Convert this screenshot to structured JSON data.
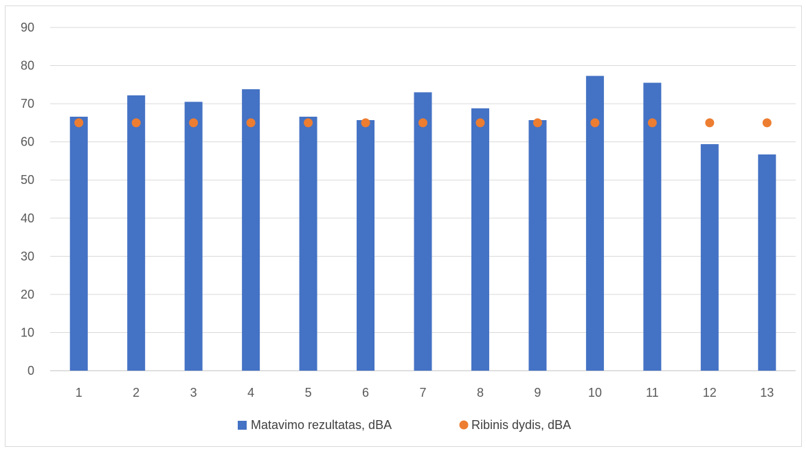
{
  "chart_data": {
    "type": "bar",
    "categories": [
      "1",
      "2",
      "3",
      "4",
      "5",
      "6",
      "7",
      "8",
      "9",
      "10",
      "11",
      "12",
      "13"
    ],
    "series": [
      {
        "name": "Matavimo rezultatas, dBA",
        "kind": "bar",
        "color": "#4472c4",
        "values": [
          66.6,
          72.2,
          70.5,
          73.8,
          66.6,
          65.7,
          73.0,
          68.8,
          65.7,
          77.3,
          75.5,
          59.4,
          56.7
        ]
      },
      {
        "name": "Ribinis dydis, dBA",
        "kind": "marker",
        "color": "#ed7d31",
        "values": [
          65,
          65,
          65,
          65,
          65,
          65,
          65,
          65,
          65,
          65,
          65,
          65,
          65
        ]
      }
    ],
    "title": "",
    "xlabel": "",
    "ylabel": "",
    "ylim": [
      0,
      90
    ],
    "yticks": [
      0,
      10,
      20,
      30,
      40,
      50,
      60,
      70,
      80,
      90
    ],
    "grid": true,
    "legend_position": "bottom"
  }
}
